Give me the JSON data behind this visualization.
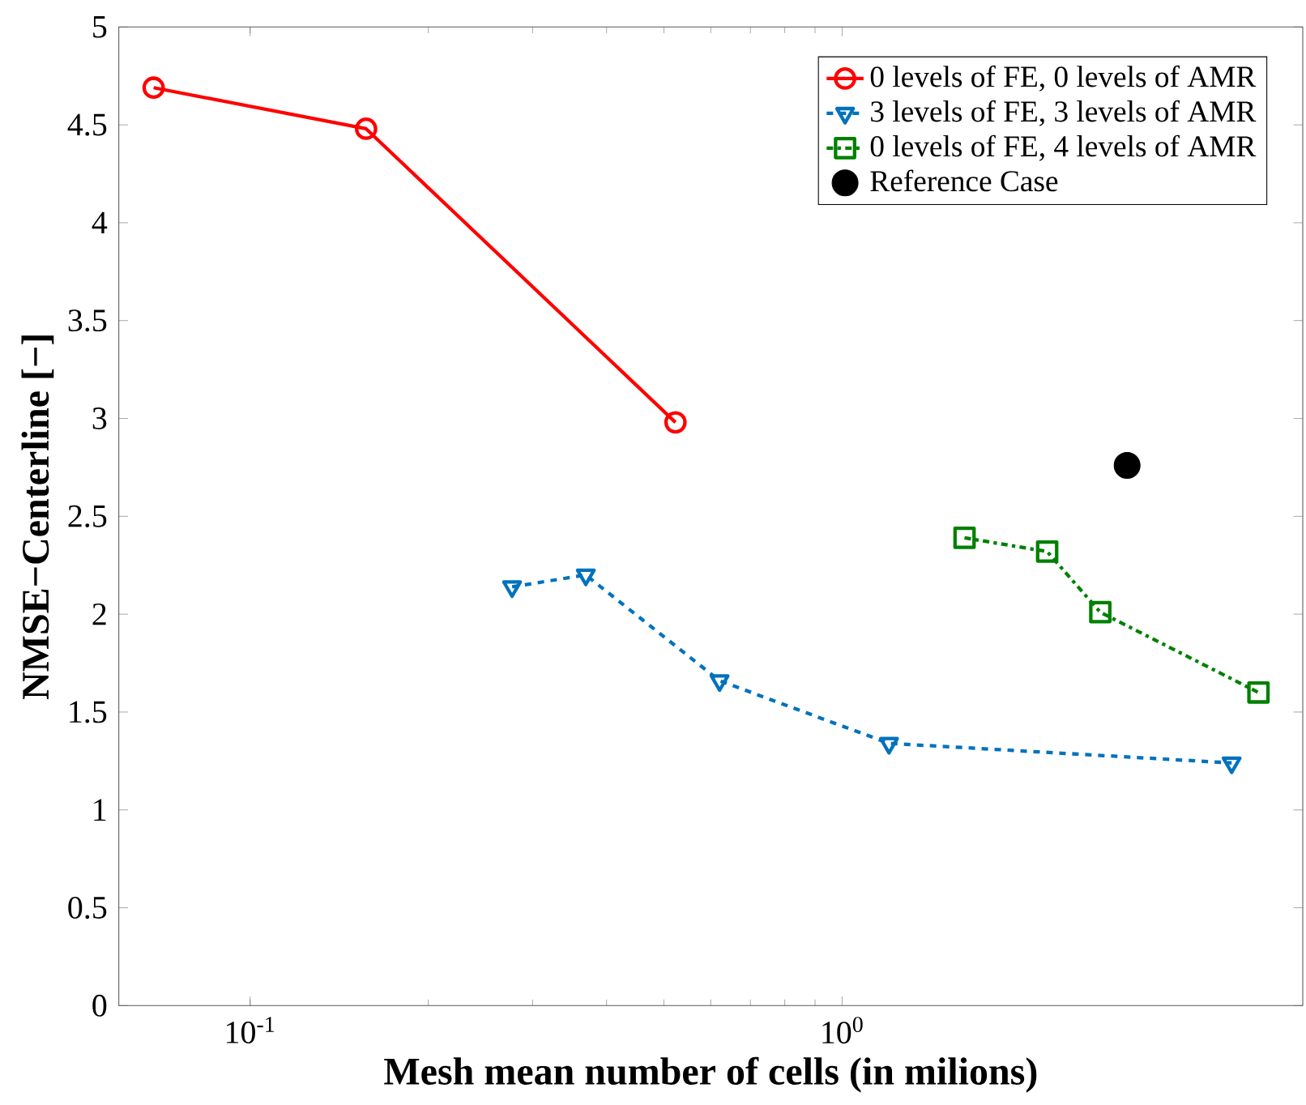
{
  "chart_data": {
    "type": "line",
    "xlabel": "Mesh mean number of cells (in milions)",
    "ylabel": "NMSE−Centerline [−]",
    "log": "x",
    "xlim": [
      0.06,
      6
    ],
    "ylim": [
      0,
      5
    ],
    "xticks": [
      {
        "value": 0.1,
        "label": "10$^{-1}$"
      },
      {
        "value": 1,
        "label": "10$^{0}$"
      }
    ],
    "yticks": [
      0,
      0.5,
      1,
      1.5,
      2,
      2.5,
      3,
      3.5,
      4,
      4.5,
      5
    ],
    "grid": false,
    "legend": "top right",
    "series": [
      {
        "name": "0 levels of FE, 0 levels of AMR",
        "color": "#ff0000",
        "marker": "circle",
        "line_style": "solid",
        "x": [
          0.0687,
          0.157,
          0.523
        ],
        "values": [
          4.69,
          4.48,
          2.98
        ]
      },
      {
        "name": "3 levels of FE, 3 levels of AMR",
        "color": "#0072bd",
        "marker": "triangle",
        "line_style": "dashed",
        "x": [
          0.277,
          0.369,
          0.621,
          1.2,
          4.55
        ],
        "values": [
          2.14,
          2.2,
          1.66,
          1.34,
          1.24
        ]
      },
      {
        "name": "0 levels of FE, 4 levels of AMR",
        "color": "#008000",
        "marker": "square",
        "line_style": "dashdotted",
        "x": [
          1.61,
          2.22,
          2.73,
          5.05
        ],
        "values": [
          2.39,
          2.32,
          2.01,
          1.6
        ]
      },
      {
        "name": "Reference Case",
        "type": "scatter",
        "color": "#000000",
        "marker": "circle",
        "x": [
          3.03
        ],
        "values": [
          2.76
        ]
      }
    ]
  }
}
